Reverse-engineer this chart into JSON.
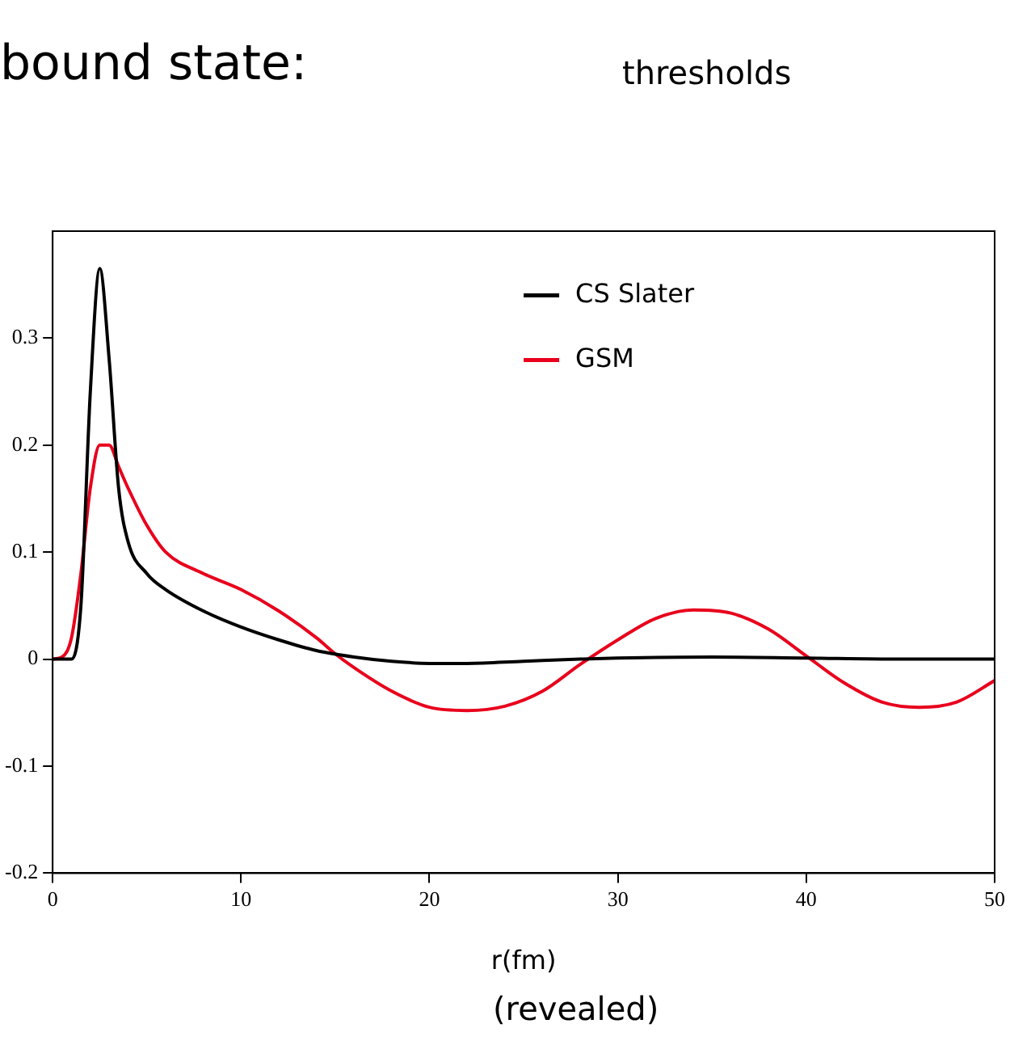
{
  "chart_data": {
    "type": "line",
    "xlabel": "r(fm)",
    "xlim": [
      0,
      50
    ],
    "xticks": [
      0,
      10,
      20,
      30,
      40,
      50
    ],
    "ylim": [
      -0.2,
      0.4
    ],
    "yticks": [
      -0.2,
      -0.1,
      0,
      0.1,
      0.2,
      0.3
    ],
    "grid": false,
    "legend": "top right",
    "marker": "none",
    "line_style": "solid",
    "annotations": [
      "bound state:",
      "thresholds",
      "(revealed)"
    ],
    "series": [
      {
        "name": "CS Slater",
        "color": "#000000",
        "x": [
          0,
          1,
          1.5,
          2,
          2.5,
          3,
          3.5,
          4,
          5,
          6,
          8,
          10,
          12,
          14,
          16,
          18,
          20,
          22,
          25,
          28,
          30,
          35,
          40,
          45,
          50
        ],
        "values": [
          0,
          0,
          0.05,
          0.25,
          0.365,
          0.28,
          0.16,
          0.11,
          0.08,
          0.065,
          0.045,
          0.03,
          0.018,
          0.008,
          0.002,
          -0.002,
          -0.004,
          -0.004,
          -0.002,
          0,
          0.001,
          0.002,
          0.001,
          0,
          0
        ]
      },
      {
        "name": "GSM",
        "color": "#e8001c",
        "x": [
          0,
          0.5,
          1,
          1.5,
          2,
          2.5,
          3,
          3.5,
          4,
          5,
          6,
          8,
          10,
          12,
          14,
          15,
          16,
          18,
          20,
          22,
          24,
          26,
          28,
          30,
          32,
          34,
          36,
          38,
          40,
          42,
          44,
          46,
          48,
          50
        ],
        "values": [
          0,
          0.002,
          0.02,
          0.08,
          0.16,
          0.2,
          0.2,
          0.18,
          0.16,
          0.125,
          0.1,
          0.08,
          0.065,
          0.045,
          0.02,
          0.005,
          -0.008,
          -0.03,
          -0.045,
          -0.048,
          -0.044,
          -0.03,
          -0.005,
          0.018,
          0.038,
          0.046,
          0.043,
          0.028,
          0.003,
          -0.022,
          -0.04,
          -0.045,
          -0.04,
          -0.02
        ]
      }
    ]
  }
}
